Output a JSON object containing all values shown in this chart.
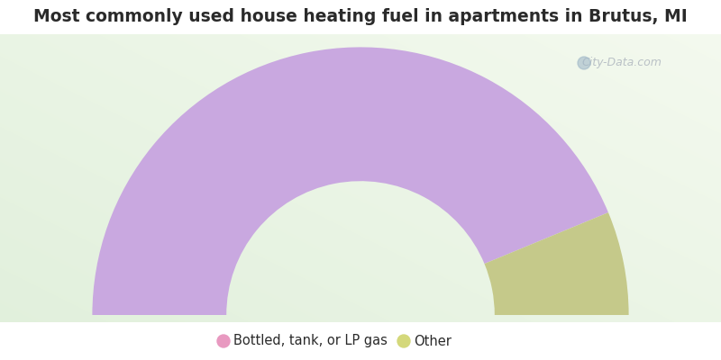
{
  "title": "Most commonly used house heating fuel in apartments in Brutus, MI",
  "segments": [
    {
      "label": "Bottled, tank, or LP gas",
      "value": 87.5,
      "color": "#c9a8e0"
    },
    {
      "label": "Other",
      "value": 12.5,
      "color": "#c5c98a"
    }
  ],
  "legend_dot_colors": [
    "#e899c0",
    "#d4d87a"
  ],
  "title_color": "#2a2a2a",
  "title_fontsize": 13.5,
  "watermark_text": "City-Data.com",
  "watermark_color": "#b0b8c0",
  "background_color": "#f0f7f0",
  "legend_fontsize": 10.5
}
